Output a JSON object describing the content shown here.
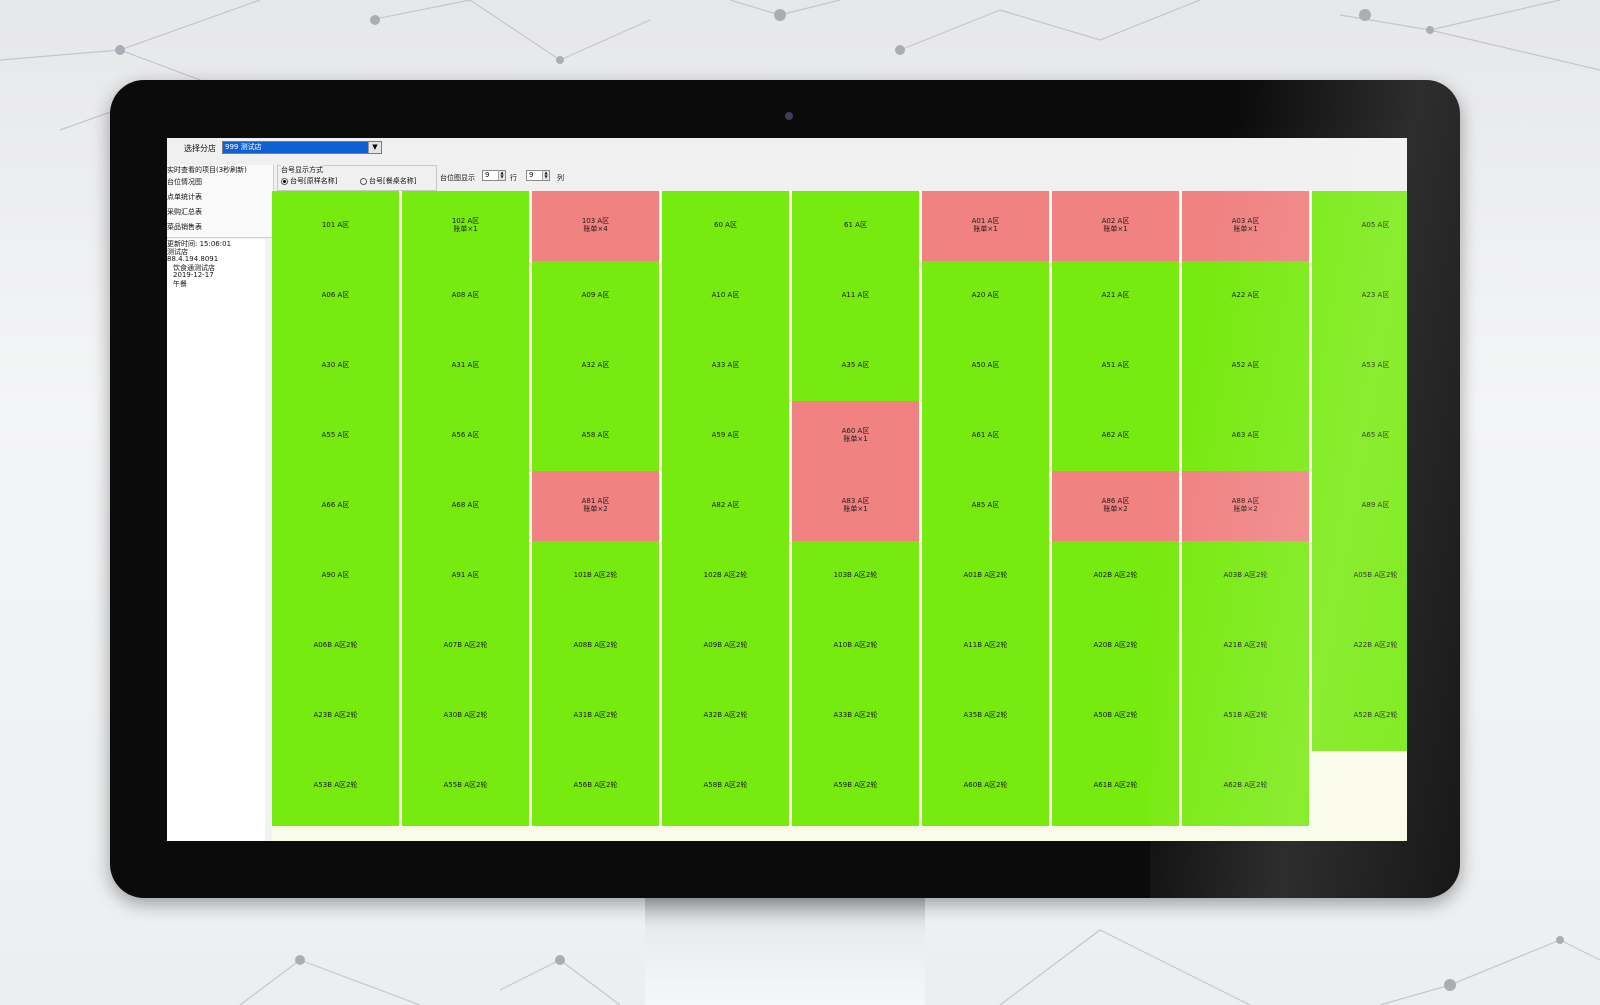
{
  "app": {
    "branch_label": "选择分店",
    "branch_value": "999 测试店",
    "menu": [
      "实时查看的项目(3秒刷新)",
      "台位情况图",
      "点单统计表",
      "采购汇总表",
      "菜品销售表"
    ],
    "info": [
      "更新时间: 15:06:01",
      "测试店",
      "88.4.194.8091",
      "饮食通测试店",
      "2019-12-17",
      "午餐"
    ],
    "display_mode": {
      "title": "台号显示方式",
      "option1": "台号[原样名称]",
      "option2": "台号[餐桌名称]"
    },
    "grid": {
      "label": "台位图显示",
      "rows": "9",
      "rows_unit": "行",
      "cols": "9",
      "cols_unit": "列"
    }
  },
  "colors": {
    "free": "#77ea0f",
    "busy": "#f08282",
    "empty": "#fafbe8"
  },
  "tables": [
    [
      {
        "name": "101 A区",
        "status": "free"
      },
      {
        "name": "102 A区",
        "status": "free",
        "note": "账单×1"
      },
      {
        "name": "103 A区",
        "status": "busy",
        "note": "账单×4"
      },
      {
        "name": "60 A区",
        "status": "free"
      },
      {
        "name": "61 A区",
        "status": "free"
      },
      {
        "name": "A01 A区",
        "status": "busy",
        "note": "账单×1"
      },
      {
        "name": "A02 A区",
        "status": "busy",
        "note": "账单×1"
      },
      {
        "name": "A03 A区",
        "status": "busy",
        "note": "账单×1"
      },
      {
        "name": "A05 A区",
        "status": "free"
      }
    ],
    [
      {
        "name": "A06 A区",
        "status": "free"
      },
      {
        "name": "A08 A区",
        "status": "free"
      },
      {
        "name": "A09 A区",
        "status": "free"
      },
      {
        "name": "A10 A区",
        "status": "free"
      },
      {
        "name": "A11 A区",
        "status": "free"
      },
      {
        "name": "A20 A区",
        "status": "free"
      },
      {
        "name": "A21 A区",
        "status": "free"
      },
      {
        "name": "A22 A区",
        "status": "free"
      },
      {
        "name": "A23 A区",
        "status": "free"
      }
    ],
    [
      {
        "name": "A30 A区",
        "status": "free"
      },
      {
        "name": "A31 A区",
        "status": "free"
      },
      {
        "name": "A32 A区",
        "status": "free"
      },
      {
        "name": "A33 A区",
        "status": "free"
      },
      {
        "name": "A35 A区",
        "status": "free"
      },
      {
        "name": "A50 A区",
        "status": "free"
      },
      {
        "name": "A51 A区",
        "status": "free"
      },
      {
        "name": "A52 A区",
        "status": "free"
      },
      {
        "name": "A53 A区",
        "status": "free"
      }
    ],
    [
      {
        "name": "A55 A区",
        "status": "free"
      },
      {
        "name": "A56 A区",
        "status": "free"
      },
      {
        "name": "A58 A区",
        "status": "free"
      },
      {
        "name": "A59 A区",
        "status": "free"
      },
      {
        "name": "A60 A区",
        "status": "busy",
        "note": "账单×1"
      },
      {
        "name": "A61 A区",
        "status": "free"
      },
      {
        "name": "A62 A区",
        "status": "free"
      },
      {
        "name": "A63 A区",
        "status": "free"
      },
      {
        "name": "A65 A区",
        "status": "free"
      }
    ],
    [
      {
        "name": "A66 A区",
        "status": "free"
      },
      {
        "name": "A68 A区",
        "status": "free"
      },
      {
        "name": "A81 A区",
        "status": "busy",
        "note": "账单×2"
      },
      {
        "name": "A82 A区",
        "status": "free"
      },
      {
        "name": "A83 A区",
        "status": "busy",
        "note": "账单×1"
      },
      {
        "name": "A85 A区",
        "status": "free"
      },
      {
        "name": "A86 A区",
        "status": "busy",
        "note": "账单×2"
      },
      {
        "name": "A88 A区",
        "status": "busy",
        "note": "账单×2"
      },
      {
        "name": "A89 A区",
        "status": "free"
      }
    ],
    [
      {
        "name": "A90 A区",
        "status": "free"
      },
      {
        "name": "A91 A区",
        "status": "free"
      },
      {
        "name": "101B A区2轮",
        "status": "free"
      },
      {
        "name": "102B A区2轮",
        "status": "free"
      },
      {
        "name": "103B A区2轮",
        "status": "free"
      },
      {
        "name": "A01B A区2轮",
        "status": "free"
      },
      {
        "name": "A02B A区2轮",
        "status": "free"
      },
      {
        "name": "A03B A区2轮",
        "status": "free"
      },
      {
        "name": "A05B A区2轮",
        "status": "free"
      }
    ],
    [
      {
        "name": "A06B A区2轮",
        "status": "free"
      },
      {
        "name": "A07B A区2轮",
        "status": "free"
      },
      {
        "name": "A08B A区2轮",
        "status": "free"
      },
      {
        "name": "A09B A区2轮",
        "status": "free"
      },
      {
        "name": "A10B A区2轮",
        "status": "free"
      },
      {
        "name": "A11B A区2轮",
        "status": "free"
      },
      {
        "name": "A20B A区2轮",
        "status": "free"
      },
      {
        "name": "A21B A区2轮",
        "status": "free"
      },
      {
        "name": "A22B A区2轮",
        "status": "free"
      }
    ],
    [
      {
        "name": "A23B A区2轮",
        "status": "free"
      },
      {
        "name": "A30B A区2轮",
        "status": "free"
      },
      {
        "name": "A31B A区2轮",
        "status": "free"
      },
      {
        "name": "A32B A区2轮",
        "status": "free"
      },
      {
        "name": "A33B A区2轮",
        "status": "free"
      },
      {
        "name": "A35B A区2轮",
        "status": "free"
      },
      {
        "name": "A50B A区2轮",
        "status": "free"
      },
      {
        "name": "A51B A区2轮",
        "status": "free"
      },
      {
        "name": "A52B A区2轮",
        "status": "free"
      }
    ],
    [
      {
        "name": "A53B A区2轮",
        "status": "free"
      },
      {
        "name": "A55B A区2轮",
        "status": "free"
      },
      {
        "name": "A56B A区2轮",
        "status": "free"
      },
      {
        "name": "A58B A区2轮",
        "status": "free"
      },
      {
        "name": "A59B A区2轮",
        "status": "free"
      },
      {
        "name": "A60B A区2轮",
        "status": "free"
      },
      {
        "name": "A61B A区2轮",
        "status": "free"
      },
      {
        "name": "A62B A区2轮",
        "status": "free"
      },
      {
        "name": "",
        "status": "empty"
      }
    ]
  ]
}
